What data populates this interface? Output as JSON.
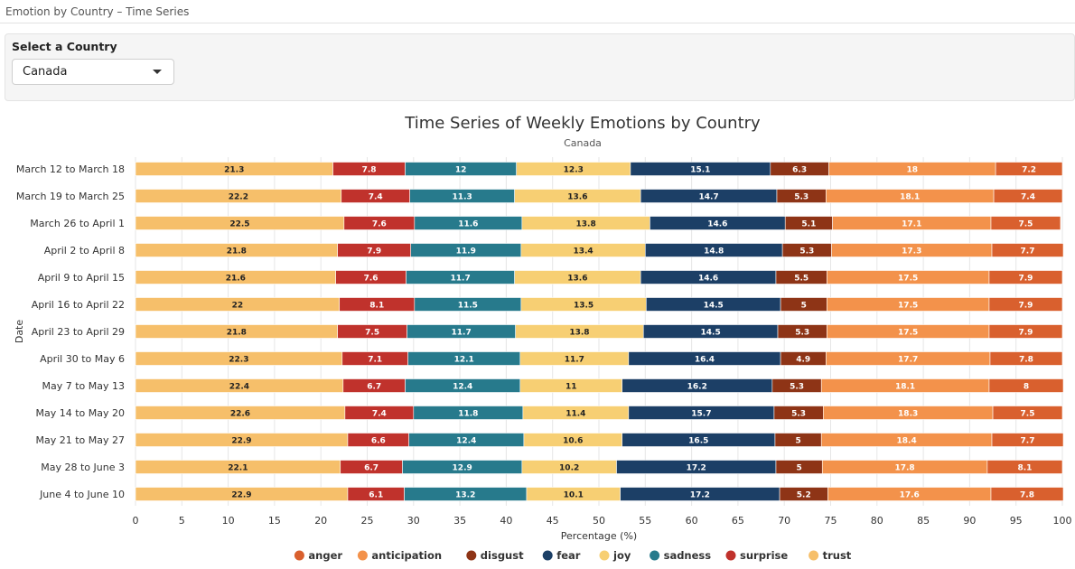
{
  "app": {
    "title": "Emotion by Country – Time Series"
  },
  "controls": {
    "label": "Select a Country",
    "selected_country": "Canada"
  },
  "chart_data": {
    "type": "bar",
    "orientation": "horizontal",
    "stacked": true,
    "title": "Time Series of Weekly Emotions by Country",
    "subtitle": "Canada",
    "xlabel": "Percentage (%)",
    "ylabel": "Date",
    "xlim": [
      0,
      100
    ],
    "xticks": [
      0,
      5,
      10,
      15,
      20,
      25,
      30,
      35,
      40,
      45,
      50,
      55,
      60,
      65,
      70,
      75,
      80,
      85,
      90,
      95,
      100
    ],
    "categories": [
      "March 12 to March 18",
      "March 19 to March 25",
      "March 26 to April 1",
      "April 2 to April 8",
      "April 9 to April 15",
      "April 16 to April 22",
      "April 23 to April 29",
      "April 30 to May 6",
      "May 7 to May 13",
      "May 14 to May 20",
      "May 21 to May 27",
      "May 28 to June 3",
      "June 4 to June 10"
    ],
    "stack_order": [
      "trust",
      "surprise",
      "sadness",
      "joy",
      "fear",
      "disgust",
      "anticipation",
      "anger"
    ],
    "series": [
      {
        "name": "trust",
        "color": "#f6bf6a",
        "values": [
          21.3,
          22.2,
          22.5,
          21.8,
          21.6,
          22,
          21.8,
          22.3,
          22.4,
          22.6,
          22.9,
          22.1,
          22.9
        ]
      },
      {
        "name": "surprise",
        "color": "#c0322c",
        "values": [
          7.8,
          7.4,
          7.6,
          7.9,
          7.6,
          8.1,
          7.5,
          7.1,
          6.7,
          7.4,
          6.6,
          6.7,
          6.1
        ]
      },
      {
        "name": "sadness",
        "color": "#277a8c",
        "values": [
          12,
          11.3,
          11.6,
          11.9,
          11.7,
          11.5,
          11.7,
          12.1,
          12.4,
          11.8,
          12.4,
          12.9,
          13.2
        ]
      },
      {
        "name": "joy",
        "color": "#f7cf73",
        "values": [
          12.3,
          13.6,
          13.8,
          13.4,
          13.6,
          13.5,
          13.8,
          11.7,
          11,
          11.4,
          10.6,
          10.2,
          10.1
        ]
      },
      {
        "name": "fear",
        "color": "#1c3f66",
        "values": [
          15.1,
          14.7,
          14.6,
          14.8,
          14.6,
          14.5,
          14.5,
          16.4,
          16.2,
          15.7,
          16.5,
          17.2,
          17.2
        ]
      },
      {
        "name": "disgust",
        "color": "#8e3416",
        "values": [
          6.3,
          5.3,
          5.1,
          5.3,
          5.5,
          5,
          5.3,
          4.9,
          5.3,
          5.3,
          5,
          5,
          5.2
        ]
      },
      {
        "name": "anticipation",
        "color": "#f3924b",
        "values": [
          18,
          18.1,
          17.1,
          17.3,
          17.5,
          17.5,
          17.5,
          17.7,
          18.1,
          18.3,
          18.4,
          17.8,
          17.6
        ]
      },
      {
        "name": "anger",
        "color": "#d9602e",
        "values": [
          7.2,
          7.4,
          7.5,
          7.7,
          7.9,
          7.9,
          7.9,
          7.8,
          8,
          7.5,
          7.7,
          8.1,
          7.8
        ]
      }
    ],
    "legend": {
      "position": "bottom",
      "items": [
        {
          "name": "anger",
          "color": "#d9602e"
        },
        {
          "name": "anticipation",
          "color": "#f3924b"
        },
        {
          "name": "disgust",
          "color": "#8e3416"
        },
        {
          "name": "fear",
          "color": "#1c3f66"
        },
        {
          "name": "joy",
          "color": "#f7cf73"
        },
        {
          "name": "sadness",
          "color": "#277a8c"
        },
        {
          "name": "surprise",
          "color": "#c0322c"
        },
        {
          "name": "trust",
          "color": "#f6bf6a"
        }
      ]
    }
  }
}
